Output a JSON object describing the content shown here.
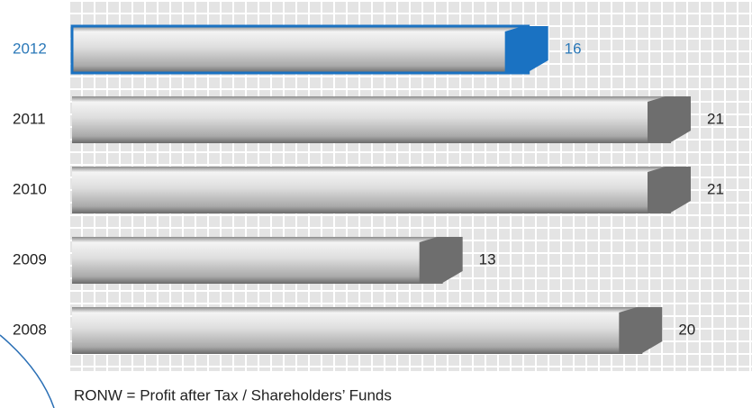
{
  "chart_data": {
    "type": "barh",
    "categories": [
      "2012",
      "2011",
      "2010",
      "2009",
      "2008"
    ],
    "values": [
      16,
      21,
      21,
      13,
      20
    ],
    "colors": [
      "#1a72c2",
      "#6e6e6e",
      "#6e6e6e",
      "#6e6e6e",
      "#6e6e6e"
    ],
    "label_colors": [
      "#2a78b8",
      "#222222",
      "#222222",
      "#222222",
      "#222222"
    ],
    "footnote": "RONW = Profit after Tax / Shareholders’ Funds"
  }
}
